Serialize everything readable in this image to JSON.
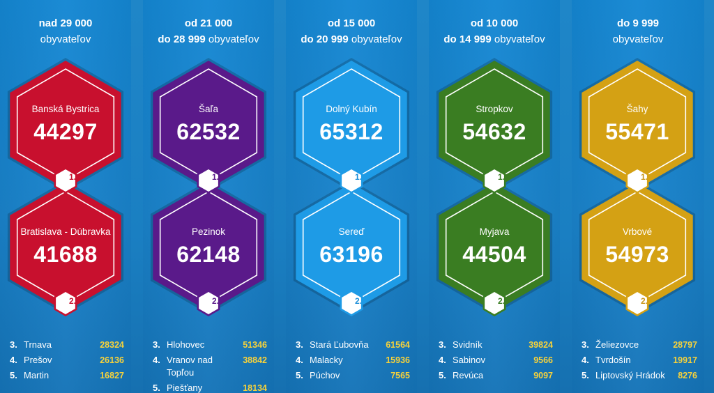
{
  "columns": [
    {
      "header_line1": "nad 29 000",
      "header_line2_bold": "",
      "header_line2_rest": "obyvateľov",
      "color": "#c8102e",
      "badge_text_color": "#c8102e",
      "top": {
        "city": "Banská Bystrica",
        "value": "44297",
        "rank": "1."
      },
      "bottom": {
        "city": "Bratislava - Dúbravka",
        "value": "41688",
        "rank": "2."
      },
      "list": [
        {
          "rank": "3.",
          "name": "Trnava",
          "value": "28324"
        },
        {
          "rank": "4.",
          "name": "Prešov",
          "value": "26136"
        },
        {
          "rank": "5.",
          "name": "Martin",
          "value": "16827"
        }
      ]
    },
    {
      "header_line1": "od 21 000",
      "header_line2_bold": "do 28 999",
      "header_line2_rest": "obyvateľov",
      "color": "#5a1a8a",
      "badge_text_color": "#5a1a8a",
      "top": {
        "city": "Šaľa",
        "value": "62532",
        "rank": "1."
      },
      "bottom": {
        "city": "Pezinok",
        "value": "62148",
        "rank": "2."
      },
      "list": [
        {
          "rank": "3.",
          "name": "Hlohovec",
          "value": "51346"
        },
        {
          "rank": "4.",
          "name": "Vranov nad Topľou",
          "value": "38842"
        },
        {
          "rank": "5.",
          "name": "Piešťany",
          "value": "18134"
        }
      ]
    },
    {
      "header_line1": "od 15 000",
      "header_line2_bold": "do 20 999",
      "header_line2_rest": "obyvateľov",
      "color": "#1e9be6",
      "badge_text_color": "#1e8fd8",
      "top": {
        "city": "Dolný Kubín",
        "value": "65312",
        "rank": "1."
      },
      "bottom": {
        "city": "Sereď",
        "value": "63196",
        "rank": "2."
      },
      "list": [
        {
          "rank": "3.",
          "name": "Stará Ľubovňa",
          "value": "61564"
        },
        {
          "rank": "4.",
          "name": "Malacky",
          "value": "15936"
        },
        {
          "rank": "5.",
          "name": "Púchov",
          "value": "7565"
        }
      ]
    },
    {
      "header_line1": "od 10 000",
      "header_line2_bold": "do 14 999",
      "header_line2_rest": "obyvateľov",
      "color": "#3a7d22",
      "badge_text_color": "#3a7d22",
      "top": {
        "city": "Stropkov",
        "value": "54632",
        "rank": "1."
      },
      "bottom": {
        "city": "Myjava",
        "value": "44504",
        "rank": "2."
      },
      "list": [
        {
          "rank": "3.",
          "name": "Svidník",
          "value": "39824"
        },
        {
          "rank": "4.",
          "name": "Sabinov",
          "value": "9566"
        },
        {
          "rank": "5.",
          "name": "Revúca",
          "value": "9097"
        }
      ]
    },
    {
      "header_line1": "do 9 999",
      "header_line2_bold": "",
      "header_line2_rest": "obyvateľov",
      "color": "#d4a114",
      "badge_text_color": "#c9961a",
      "top": {
        "city": "Šahy",
        "value": "55471",
        "rank": "1."
      },
      "bottom": {
        "city": "Vrbové",
        "value": "54973",
        "rank": "2."
      },
      "list": [
        {
          "rank": "3.",
          "name": "Želiezovce",
          "value": "28797"
        },
        {
          "rank": "4.",
          "name": "Tvrdošín",
          "value": "19917"
        },
        {
          "rank": "5.",
          "name": "Liptovský Hrádok",
          "value": "8276"
        }
      ]
    }
  ]
}
